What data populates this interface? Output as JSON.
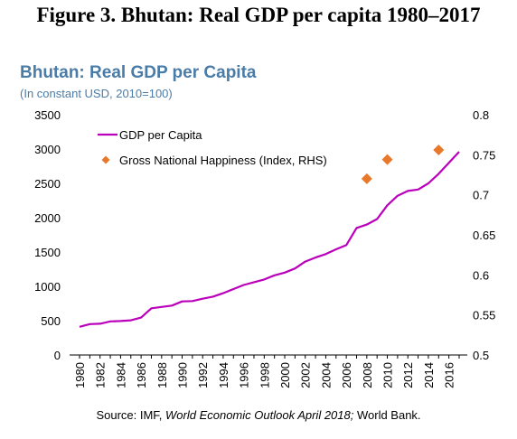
{
  "figure_title": "Figure 3. Bhutan: Real GDP per capita 1980–2017",
  "source": {
    "prefix": "Source: IMF, ",
    "italic": "World Economic Outlook April 2018;",
    "suffix": " World Bank."
  },
  "colors": {
    "gdp_line": "#bb00bb",
    "happiness_marker": "#e8782a",
    "title": "#4a7ca8"
  },
  "chart_data": {
    "type": "line",
    "title": "Bhutan: Real GDP per Capita",
    "subtitle": "(In constant USD, 2010=100)",
    "xlim": [
      1980,
      2017
    ],
    "x_tick_labels": [
      "1980",
      "1982",
      "1984",
      "1986",
      "1988",
      "1990",
      "1992",
      "1994",
      "1996",
      "1998",
      "2000",
      "2002",
      "2004",
      "2006",
      "2008",
      "2010",
      "2012",
      "2014",
      "2016"
    ],
    "ylim_left": [
      0,
      3500
    ],
    "y_left_ticks": [
      0,
      500,
      1000,
      1500,
      2000,
      2500,
      3000,
      3500
    ],
    "ylim_right": [
      0.5,
      0.8
    ],
    "y_right_ticks": [
      "0.5",
      "0.55",
      "0.6",
      "0.65",
      "0.7",
      "0.75",
      "0.8"
    ],
    "grid": false,
    "legend_position": "top-left",
    "series": [
      {
        "name": "GDP per Capita",
        "axis": "left",
        "style": "line",
        "x": [
          1980,
          1981,
          1982,
          1983,
          1984,
          1985,
          1986,
          1987,
          1988,
          1989,
          1990,
          1991,
          1992,
          1993,
          1994,
          1995,
          1996,
          1997,
          1998,
          1999,
          2000,
          2001,
          2002,
          2003,
          2004,
          2005,
          2006,
          2007,
          2008,
          2009,
          2010,
          2011,
          2012,
          2013,
          2014,
          2015,
          2016,
          2017
        ],
        "y": [
          410,
          450,
          455,
          490,
          495,
          505,
          545,
          680,
          700,
          720,
          780,
          785,
          820,
          850,
          900,
          960,
          1020,
          1060,
          1100,
          1160,
          1200,
          1260,
          1360,
          1420,
          1470,
          1540,
          1600,
          1850,
          1900,
          1980,
          2180,
          2320,
          2390,
          2410,
          2500,
          2640,
          2800,
          2960
        ]
      },
      {
        "name": "Gross National Happiness (Index, RHS)",
        "axis": "right",
        "style": "diamond-marker",
        "x": [
          2008,
          2010,
          2015
        ],
        "y": [
          0.72,
          0.744,
          0.756
        ]
      }
    ]
  }
}
